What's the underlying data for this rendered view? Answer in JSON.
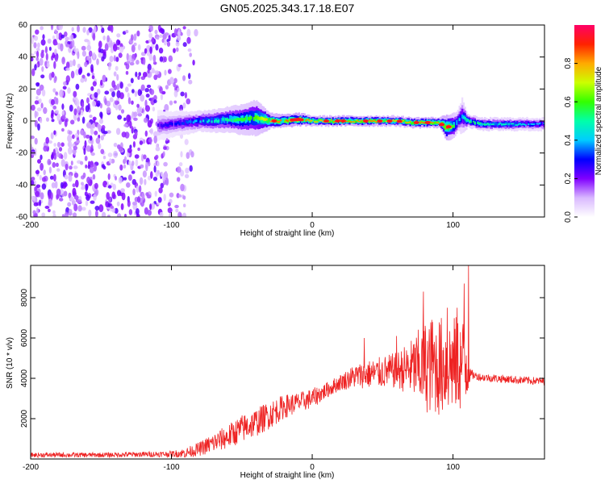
{
  "title": "GN05.2025.343.17.18.E07",
  "chart_data": [
    {
      "type": "heatmap",
      "title": "",
      "xlabel": "Height of straight line (km)",
      "ylabel": "Frequency (Hz)",
      "xlim": [
        -200,
        165
      ],
      "ylim": [
        -60,
        60
      ],
      "xticks": [
        -200,
        -100,
        0,
        100
      ],
      "yticks": [
        -60,
        -40,
        -20,
        0,
        20,
        40,
        60
      ],
      "noise_region": [
        -200,
        -85
      ],
      "signal_start": -110,
      "colorbar": {
        "label": "Normalized spectral amplitude",
        "range": [
          0.0,
          1.0
        ],
        "ticks": [
          "0.0",
          "0.2",
          "0.4",
          "0.6",
          "0.8"
        ],
        "colormap": "rainbow"
      },
      "ridge": {
        "x": [
          -110,
          -100,
          -90,
          -80,
          -70,
          -60,
          -50,
          -40,
          -30,
          -20,
          -10,
          0,
          10,
          20,
          30,
          40,
          50,
          60,
          70,
          80,
          90,
          95,
          100,
          103,
          106,
          110,
          120,
          130,
          140,
          150,
          165
        ],
        "freq": [
          -3,
          -2,
          -1,
          0,
          0,
          1,
          1,
          2,
          0,
          0,
          1,
          0,
          0,
          0,
          0,
          0,
          0,
          0,
          -1,
          -1,
          -1,
          -4,
          -3,
          0,
          3,
          0,
          -2,
          -2,
          -2,
          -2,
          -2
        ],
        "amplitude": [
          0.25,
          0.3,
          0.35,
          0.45,
          0.5,
          0.55,
          0.6,
          0.65,
          0.85,
          0.9,
          0.95,
          0.8,
          0.85,
          0.9,
          0.85,
          0.9,
          0.8,
          0.8,
          0.85,
          0.9,
          0.85,
          0.9,
          0.6,
          0.5,
          0.4,
          0.6,
          0.55,
          0.5,
          0.5,
          0.45,
          0.4
        ],
        "width_hz": [
          12,
          10,
          9,
          8,
          9,
          10,
          12,
          14,
          6,
          5,
          5,
          4,
          4,
          4,
          4,
          4,
          4,
          4,
          4,
          4,
          4,
          10,
          10,
          8,
          14,
          5,
          5,
          5,
          5,
          5,
          5
        ]
      }
    },
    {
      "type": "line",
      "title": "",
      "xlabel": "Height of straight line (km)",
      "ylabel": "SNR (10 * v/v)",
      "xlim": [
        -200,
        165
      ],
      "ylim": [
        0,
        9600
      ],
      "xticks": [
        -200,
        -100,
        0,
        100
      ],
      "yticks": [
        2000,
        4000,
        6000,
        8000
      ],
      "series": [
        {
          "name": "SNR",
          "color": "#ee2222",
          "envelope_x": [
            -200,
            -150,
            -100,
            -90,
            -80,
            -70,
            -60,
            -50,
            -40,
            -30,
            -20,
            -10,
            0,
            10,
            20,
            30,
            40,
            50,
            60,
            70,
            80,
            90,
            100,
            105,
            110,
            112,
            115,
            120,
            130,
            140,
            150,
            165
          ],
          "envelope_mean": [
            200,
            200,
            250,
            300,
            500,
            800,
            1100,
            1500,
            1800,
            2200,
            2600,
            2800,
            3000,
            3400,
            3800,
            4100,
            4200,
            4300,
            4400,
            4500,
            4600,
            4600,
            4700,
            4700,
            4800,
            4200,
            4150,
            4050,
            4000,
            3950,
            3900,
            3850
          ],
          "envelope_amp": [
            120,
            120,
            150,
            250,
            350,
            500,
            600,
            700,
            700,
            700,
            600,
            500,
            500,
            400,
            400,
            600,
            700,
            800,
            900,
            1400,
            2300,
            2500,
            2400,
            2400,
            2200,
            300,
            200,
            200,
            200,
            200,
            200,
            200
          ],
          "peaks": [
            {
              "x": 79,
              "y": 8300
            },
            {
              "x": 96,
              "y": 7500
            },
            {
              "x": 103,
              "y": 7500
            },
            {
              "x": 108,
              "y": 8700
            },
            {
              "x": 111,
              "y": 9600
            },
            {
              "x": 37,
              "y": 6000
            },
            {
              "x": 60,
              "y": 6100
            },
            {
              "x": 85,
              "y": 6900
            }
          ]
        }
      ]
    }
  ]
}
